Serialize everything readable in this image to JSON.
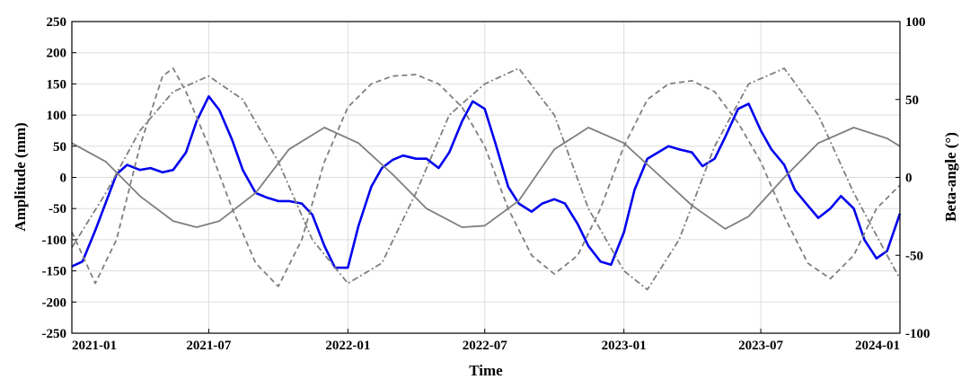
{
  "chart_data": {
    "type": "line",
    "title": "",
    "xlabel": "Time",
    "ylabel_left": "Amplitude (mm)",
    "ylabel_right": "Beta-angle (°)",
    "x_range": [
      "2021-01-01",
      "2024-01-01"
    ],
    "x_ticks": [
      "2021-01",
      "2021-07",
      "2022-01",
      "2022-07",
      "2023-01",
      "2023-07",
      "2024-01"
    ],
    "ylim_left": [
      -250,
      250
    ],
    "y_ticks_left": [
      -250,
      -200,
      -150,
      -100,
      -50,
      0,
      50,
      100,
      150,
      200,
      250
    ],
    "ylim_right": [
      -100,
      100
    ],
    "y_ticks_right": [
      -100,
      -50,
      0,
      50,
      100
    ],
    "grid": true,
    "legend": "none",
    "series": [
      {
        "axis": "left",
        "color": "#0000ee",
        "style": "solid",
        "points": [
          [
            "2021-01-01",
            -143
          ],
          [
            "2021-01-15",
            -135
          ],
          [
            "2021-02-01",
            -85
          ],
          [
            "2021-02-15",
            -40
          ],
          [
            "2021-03-01",
            5
          ],
          [
            "2021-03-15",
            20
          ],
          [
            "2021-04-01",
            12
          ],
          [
            "2021-04-15",
            15
          ],
          [
            "2021-05-01",
            8
          ],
          [
            "2021-05-15",
            12
          ],
          [
            "2021-06-01",
            40
          ],
          [
            "2021-06-15",
            90
          ],
          [
            "2021-07-01",
            130
          ],
          [
            "2021-07-15",
            108
          ],
          [
            "2021-08-01",
            60
          ],
          [
            "2021-08-15",
            12
          ],
          [
            "2021-09-01",
            -25
          ],
          [
            "2021-09-15",
            -32
          ],
          [
            "2021-10-01",
            -38
          ],
          [
            "2021-10-15",
            -38
          ],
          [
            "2021-11-01",
            -42
          ],
          [
            "2021-11-15",
            -60
          ],
          [
            "2021-12-01",
            -110
          ],
          [
            "2021-12-15",
            -145
          ],
          [
            "2022-01-01",
            -145
          ],
          [
            "2022-01-15",
            -78
          ],
          [
            "2022-02-01",
            -15
          ],
          [
            "2022-02-15",
            15
          ],
          [
            "2022-03-01",
            28
          ],
          [
            "2022-03-15",
            35
          ],
          [
            "2022-04-01",
            30
          ],
          [
            "2022-04-15",
            30
          ],
          [
            "2022-05-01",
            15
          ],
          [
            "2022-05-15",
            40
          ],
          [
            "2022-06-01",
            90
          ],
          [
            "2022-06-15",
            122
          ],
          [
            "2022-07-01",
            110
          ],
          [
            "2022-07-15",
            55
          ],
          [
            "2022-08-01",
            -15
          ],
          [
            "2022-08-15",
            -42
          ],
          [
            "2022-09-01",
            -55
          ],
          [
            "2022-09-15",
            -42
          ],
          [
            "2022-10-01",
            -35
          ],
          [
            "2022-10-15",
            -42
          ],
          [
            "2022-11-01",
            -75
          ],
          [
            "2022-11-15",
            -110
          ],
          [
            "2022-12-01",
            -135
          ],
          [
            "2022-12-15",
            -140
          ],
          [
            "2023-01-01",
            -88
          ],
          [
            "2023-01-15",
            -20
          ],
          [
            "2023-02-01",
            30
          ],
          [
            "2023-02-15",
            40
          ],
          [
            "2023-03-01",
            50
          ],
          [
            "2023-03-15",
            45
          ],
          [
            "2023-04-01",
            40
          ],
          [
            "2023-04-15",
            18
          ],
          [
            "2023-05-01",
            30
          ],
          [
            "2023-05-15",
            65
          ],
          [
            "2023-06-01",
            110
          ],
          [
            "2023-06-15",
            118
          ],
          [
            "2023-07-01",
            75
          ],
          [
            "2023-07-15",
            45
          ],
          [
            "2023-08-01",
            20
          ],
          [
            "2023-08-15",
            -20
          ],
          [
            "2023-09-01",
            -45
          ],
          [
            "2023-09-15",
            -65
          ],
          [
            "2023-10-01",
            -50
          ],
          [
            "2023-10-15",
            -30
          ],
          [
            "2023-11-01",
            -50
          ],
          [
            "2023-11-15",
            -100
          ],
          [
            "2023-12-01",
            -130
          ],
          [
            "2023-12-15",
            -118
          ],
          [
            "2024-01-01",
            -58
          ]
        ]
      },
      {
        "axis": "right",
        "color": "#7f7f7f",
        "style": "solid",
        "points": [
          [
            "2021-01-01",
            22
          ],
          [
            "2021-02-15",
            10
          ],
          [
            "2021-04-01",
            -12
          ],
          [
            "2021-05-15",
            -28
          ],
          [
            "2021-06-15",
            -32
          ],
          [
            "2021-07-15",
            -28
          ],
          [
            "2021-09-01",
            -10
          ],
          [
            "2021-10-15",
            18
          ],
          [
            "2021-12-01",
            32
          ],
          [
            "2022-01-15",
            22
          ],
          [
            "2022-03-01",
            2
          ],
          [
            "2022-04-15",
            -20
          ],
          [
            "2022-06-01",
            -32
          ],
          [
            "2022-07-01",
            -31
          ],
          [
            "2022-08-15",
            -15
          ],
          [
            "2022-10-01",
            18
          ],
          [
            "2022-11-15",
            32
          ],
          [
            "2023-01-01",
            22
          ],
          [
            "2023-02-15",
            2
          ],
          [
            "2023-04-01",
            -18
          ],
          [
            "2023-05-15",
            -33
          ],
          [
            "2023-06-15",
            -25
          ],
          [
            "2023-08-01",
            0
          ],
          [
            "2023-09-15",
            22
          ],
          [
            "2023-11-01",
            32
          ],
          [
            "2023-12-15",
            25
          ],
          [
            "2024-01-01",
            20
          ]
        ]
      },
      {
        "axis": "right",
        "color": "#7f7f7f",
        "style": "dashed",
        "points": [
          [
            "2021-01-01",
            -35
          ],
          [
            "2021-02-01",
            -68
          ],
          [
            "2021-03-01",
            -40
          ],
          [
            "2021-04-01",
            20
          ],
          [
            "2021-05-01",
            65
          ],
          [
            "2021-05-15",
            70
          ],
          [
            "2021-06-01",
            55
          ],
          [
            "2021-07-01",
            20
          ],
          [
            "2021-08-01",
            -20
          ],
          [
            "2021-09-01",
            -55
          ],
          [
            "2021-10-01",
            -70
          ],
          [
            "2021-11-01",
            -40
          ],
          [
            "2021-12-01",
            10
          ],
          [
            "2022-01-01",
            45
          ],
          [
            "2022-02-01",
            60
          ],
          [
            "2022-03-01",
            65
          ],
          [
            "2022-04-01",
            66
          ],
          [
            "2022-05-01",
            60
          ],
          [
            "2022-06-01",
            45
          ],
          [
            "2022-07-01",
            20
          ],
          [
            "2022-08-01",
            -20
          ],
          [
            "2022-09-01",
            -50
          ],
          [
            "2022-10-01",
            -62
          ],
          [
            "2022-11-01",
            -50
          ],
          [
            "2022-12-01",
            -20
          ],
          [
            "2023-01-01",
            20
          ],
          [
            "2023-02-01",
            50
          ],
          [
            "2023-03-01",
            60
          ],
          [
            "2023-04-01",
            62
          ],
          [
            "2023-05-01",
            55
          ],
          [
            "2023-06-01",
            35
          ],
          [
            "2023-07-01",
            10
          ],
          [
            "2023-08-01",
            -25
          ],
          [
            "2023-09-01",
            -55
          ],
          [
            "2023-10-01",
            -65
          ],
          [
            "2023-11-01",
            -50
          ],
          [
            "2023-12-01",
            -20
          ],
          [
            "2024-01-01",
            -5
          ]
        ]
      },
      {
        "axis": "right",
        "color": "#7f7f7f",
        "style": "dashdot",
        "points": [
          [
            "2021-01-01",
            -45
          ],
          [
            "2021-02-15",
            -10
          ],
          [
            "2021-04-01",
            30
          ],
          [
            "2021-05-15",
            55
          ],
          [
            "2021-07-01",
            65
          ],
          [
            "2021-08-15",
            50
          ],
          [
            "2021-10-01",
            10
          ],
          [
            "2021-11-15",
            -40
          ],
          [
            "2022-01-01",
            -68
          ],
          [
            "2022-02-15",
            -55
          ],
          [
            "2022-04-01",
            -10
          ],
          [
            "2022-05-15",
            40
          ],
          [
            "2022-07-01",
            60
          ],
          [
            "2022-08-15",
            70
          ],
          [
            "2022-10-01",
            40
          ],
          [
            "2022-11-15",
            -20
          ],
          [
            "2023-01-01",
            -60
          ],
          [
            "2023-02-01",
            -72
          ],
          [
            "2023-03-15",
            -40
          ],
          [
            "2023-05-01",
            20
          ],
          [
            "2023-06-15",
            60
          ],
          [
            "2023-08-01",
            70
          ],
          [
            "2023-09-15",
            40
          ],
          [
            "2023-11-01",
            -10
          ],
          [
            "2023-12-15",
            -50
          ],
          [
            "2024-01-01",
            -65
          ]
        ]
      }
    ]
  }
}
